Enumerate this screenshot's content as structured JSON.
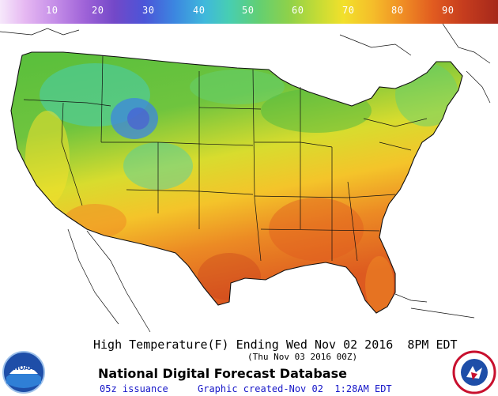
{
  "colorbar": {
    "ticks": [
      "10",
      "20",
      "30",
      "40",
      "50",
      "60",
      "70",
      "80",
      "90"
    ],
    "colors": [
      "#f6e8fb",
      "#c58ee8",
      "#7348c8",
      "#3c86e0",
      "#47ceb2",
      "#8ed14a",
      "#f2e02b",
      "#ef8c24",
      "#c63d1e"
    ]
  },
  "caption": {
    "title": "High Temperature(F) Ending Wed Nov 02 2016  8PM EDT",
    "subtitle": "(Thu Nov 03 2016 00Z)",
    "database": "National Digital Forecast Database",
    "issuance": "05z issuance",
    "created": "Graphic created-Nov 02  1:28AM EDT"
  },
  "logos": {
    "left": "NOAA",
    "right": "NATIONAL WEATHER SERVICE"
  },
  "map": {
    "region": "Continental United States",
    "fill_colors": {
      "northwest": "#63c24a",
      "rockies_cold": "#3c86e0",
      "plains_north": "#5bbf3a",
      "great_lakes": "#4fb940",
      "northeast": "#69c04c",
      "central": "#f2e02b",
      "southeast": "#ef8c24",
      "gulf_coast": "#e15b20"
    }
  }
}
